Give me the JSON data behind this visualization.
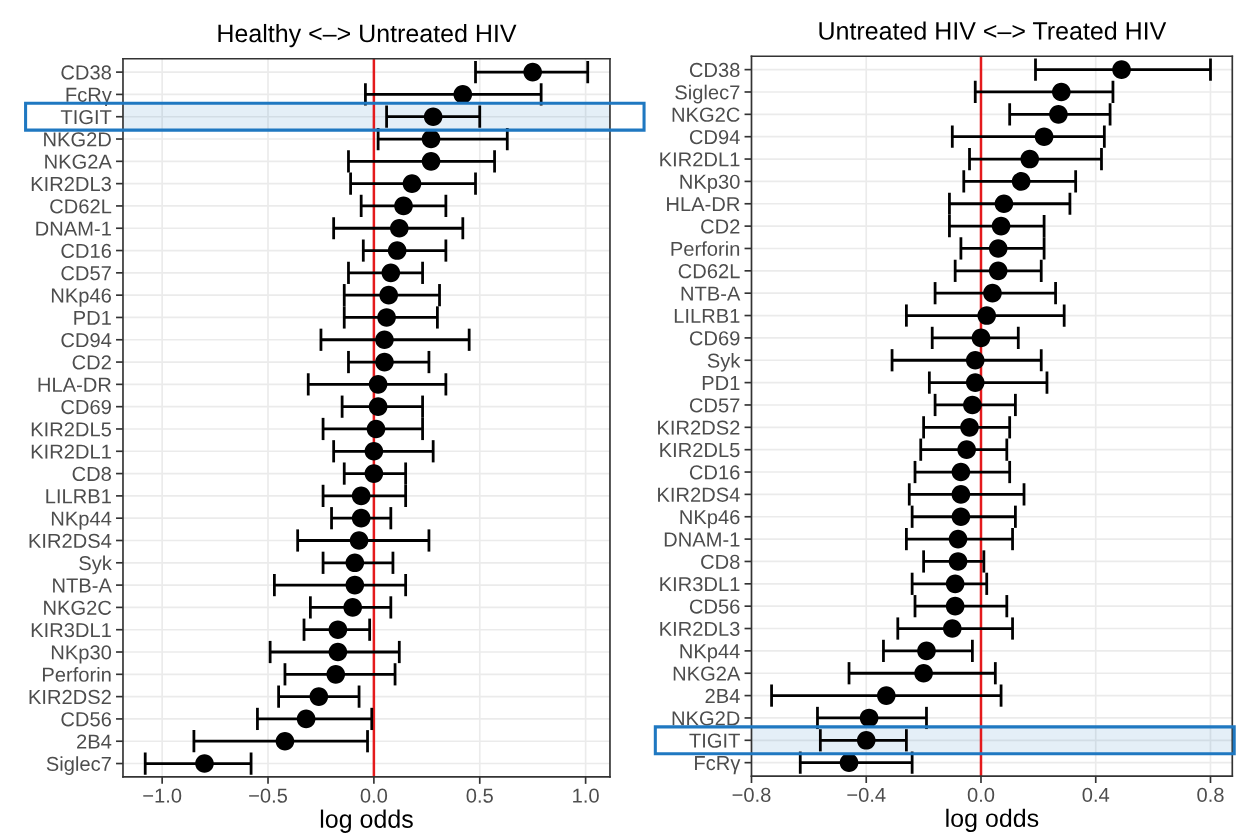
{
  "chart_data": [
    {
      "type": "scatter",
      "orientation": "horizontal",
      "title": "Healthy <–> Untreated HIV",
      "xlabel": "log odds",
      "marker": "circle",
      "grid": true,
      "categories": [
        "CD38",
        "FcRγ",
        "TIGIT",
        "NKG2D",
        "NKG2A",
        "KIR2DL3",
        "CD62L",
        "DNAM-1",
        "CD16",
        "CD57",
        "NKp46",
        "PD1",
        "CD94",
        "CD2",
        "HLA-DR",
        "CD69",
        "KIR2DL5",
        "KIR2DL1",
        "CD8",
        "LILRB1",
        "NKp44",
        "KIR2DS4",
        "Syk",
        "NTB-A",
        "NKG2C",
        "KIR3DL1",
        "NKp30",
        "Perforin",
        "KIR2DS2",
        "CD56",
        "2B4",
        "Siglec7"
      ],
      "series": [
        {
          "color": "#000000",
          "values": [
            0.75,
            0.42,
            0.28,
            0.27,
            0.27,
            0.18,
            0.14,
            0.12,
            0.11,
            0.08,
            0.07,
            0.06,
            0.05,
            0.05,
            0.02,
            0.02,
            0.01,
            0.0,
            0.0,
            -0.06,
            -0.06,
            -0.07,
            -0.09,
            -0.09,
            -0.1,
            -0.17,
            -0.17,
            -0.18,
            -0.26,
            -0.32,
            -0.42,
            -0.8
          ],
          "errors": [
            [
              0.48,
              1.01
            ],
            [
              -0.04,
              0.79
            ],
            [
              0.06,
              0.5
            ],
            [
              0.02,
              0.63
            ],
            [
              -0.12,
              0.57
            ],
            [
              -0.11,
              0.48
            ],
            [
              -0.06,
              0.34
            ],
            [
              -0.19,
              0.42
            ],
            [
              -0.05,
              0.34
            ],
            [
              -0.12,
              0.23
            ],
            [
              -0.14,
              0.31
            ],
            [
              -0.14,
              0.3
            ],
            [
              -0.25,
              0.45
            ],
            [
              -0.12,
              0.26
            ],
            [
              -0.31,
              0.34
            ],
            [
              -0.15,
              0.23
            ],
            [
              -0.24,
              0.23
            ],
            [
              -0.19,
              0.28
            ],
            [
              -0.14,
              0.15
            ],
            [
              -0.24,
              0.15
            ],
            [
              -0.2,
              0.08
            ],
            [
              -0.36,
              0.26
            ],
            [
              -0.24,
              0.09
            ],
            [
              -0.47,
              0.15
            ],
            [
              -0.3,
              0.08
            ],
            [
              -0.33,
              -0.02
            ],
            [
              -0.49,
              0.12
            ],
            [
              -0.42,
              0.1
            ],
            [
              -0.45,
              -0.07
            ],
            [
              -0.55,
              -0.01
            ],
            [
              -0.85,
              -0.03
            ],
            [
              -1.08,
              -0.58
            ]
          ]
        }
      ],
      "xlim": [
        -1.185,
        1.115
      ],
      "xticks": [
        {
          "value": -1.0,
          "label": "−1.0"
        },
        {
          "value": -0.5,
          "label": "−0.5"
        },
        {
          "value": 0.0,
          "label": "0.0"
        },
        {
          "value": 0.5,
          "label": "0.5"
        },
        {
          "value": 1.0,
          "label": "1.0"
        }
      ],
      "ref_lines": [
        {
          "axis": "x",
          "value": 0,
          "color": "#e41a1c"
        }
      ],
      "bands": [
        {
          "axis": "y",
          "from": "TIGIT",
          "to": "TIGIT",
          "color": "#1f78c1"
        }
      ]
    },
    {
      "type": "scatter",
      "orientation": "horizontal",
      "title": "Untreated HIV <–> Treated HIV",
      "xlabel": "log odds",
      "marker": "circle",
      "grid": true,
      "categories": [
        "CD38",
        "Siglec7",
        "NKG2C",
        "CD94",
        "KIR2DL1",
        "NKp30",
        "HLA-DR",
        "CD2",
        "Perforin",
        "CD62L",
        "NTB-A",
        "LILRB1",
        "CD69",
        "Syk",
        "PD1",
        "CD57",
        "KIR2DS2",
        "KIR2DL5",
        "CD16",
        "KIR2DS4",
        "NKp46",
        "DNAM-1",
        "CD8",
        "KIR3DL1",
        "CD56",
        "KIR2DL3",
        "NKp44",
        "NKG2A",
        "2B4",
        "NKG2D",
        "TIGIT",
        "FcRγ"
      ],
      "series": [
        {
          "color": "#000000",
          "values": [
            0.49,
            0.28,
            0.27,
            0.22,
            0.17,
            0.14,
            0.08,
            0.07,
            0.06,
            0.06,
            0.04,
            0.02,
            0.0,
            -0.02,
            -0.02,
            -0.03,
            -0.04,
            -0.05,
            -0.07,
            -0.07,
            -0.07,
            -0.08,
            -0.08,
            -0.09,
            -0.09,
            -0.1,
            -0.19,
            -0.2,
            -0.33,
            -0.39,
            -0.4,
            -0.46
          ],
          "errors": [
            [
              0.19,
              0.8
            ],
            [
              -0.02,
              0.46
            ],
            [
              0.1,
              0.45
            ],
            [
              -0.1,
              0.43
            ],
            [
              -0.04,
              0.42
            ],
            [
              -0.06,
              0.33
            ],
            [
              -0.11,
              0.31
            ],
            [
              -0.11,
              0.22
            ],
            [
              -0.07,
              0.22
            ],
            [
              -0.09,
              0.21
            ],
            [
              -0.16,
              0.26
            ],
            [
              -0.26,
              0.29
            ],
            [
              -0.17,
              0.13
            ],
            [
              -0.31,
              0.21
            ],
            [
              -0.18,
              0.23
            ],
            [
              -0.16,
              0.12
            ],
            [
              -0.2,
              0.1
            ],
            [
              -0.21,
              0.09
            ],
            [
              -0.23,
              0.1
            ],
            [
              -0.25,
              0.15
            ],
            [
              -0.24,
              0.12
            ],
            [
              -0.26,
              0.11
            ],
            [
              -0.2,
              0.01
            ],
            [
              -0.24,
              0.02
            ],
            [
              -0.23,
              0.09
            ],
            [
              -0.29,
              0.11
            ],
            [
              -0.34,
              -0.03
            ],
            [
              -0.46,
              0.05
            ],
            [
              -0.73,
              0.07
            ],
            [
              -0.57,
              -0.19
            ],
            [
              -0.56,
              -0.26
            ],
            [
              -0.63,
              -0.24
            ]
          ]
        }
      ],
      "xlim": [
        -0.8,
        0.876
      ],
      "xticks": [
        {
          "value": -0.8,
          "label": "−0.8"
        },
        {
          "value": -0.4,
          "label": "−0.4"
        },
        {
          "value": 0.0,
          "label": "0.0"
        },
        {
          "value": 0.4,
          "label": "0.4"
        },
        {
          "value": 0.8,
          "label": "0.8"
        }
      ],
      "ref_lines": [
        {
          "axis": "x",
          "value": 0,
          "color": "#e41a1c"
        }
      ],
      "bands": [
        {
          "axis": "y",
          "from": "TIGIT",
          "to": "TIGIT",
          "color": "#1f78c1"
        }
      ]
    }
  ]
}
